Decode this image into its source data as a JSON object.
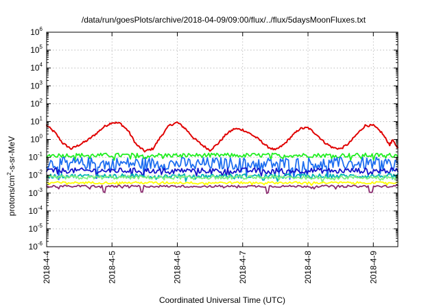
{
  "chart_data": {
    "type": "line",
    "title": "/data/run/goesPlots/archive/2018-04-09/09:00/flux/../flux/5daysMoonFluxes.txt",
    "xlabel": "Coordinated Universal Time (UTC)",
    "ylabel": {
      "base": "protons/cm",
      "sup": "2",
      "rest": "-s-sr-MeV"
    },
    "yscale": "log",
    "ylim": [
      1e-06,
      1000000.0
    ],
    "yticks": [
      {
        "value": 1000000.0,
        "base": "10",
        "exp": "6"
      },
      {
        "value": 100000.0,
        "base": "10",
        "exp": "5"
      },
      {
        "value": 10000.0,
        "base": "10",
        "exp": "4"
      },
      {
        "value": 1000.0,
        "base": "10",
        "exp": "3"
      },
      {
        "value": 100.0,
        "base": "10",
        "exp": "2"
      },
      {
        "value": 10.0,
        "base": "10",
        "exp": "1"
      },
      {
        "value": 1.0,
        "base": "10",
        "exp": "0"
      },
      {
        "value": 0.1,
        "base": "10",
        "exp": "-1"
      },
      {
        "value": 0.01,
        "base": "10",
        "exp": "-2"
      },
      {
        "value": 0.001,
        "base": "10",
        "exp": "-3"
      },
      {
        "value": 0.0001,
        "base": "10",
        "exp": "-4"
      },
      {
        "value": 1e-05,
        "base": "10",
        "exp": "-5"
      },
      {
        "value": 1e-06,
        "base": "10",
        "exp": "-6"
      }
    ],
    "xlim": [
      "2018-04-04T00:00",
      "2018-04-09T09:00"
    ],
    "xticks": [
      {
        "value": "2018-04-04T00:00",
        "label": "2018-4-4"
      },
      {
        "value": "2018-04-05T00:00",
        "label": "2018-4-5"
      },
      {
        "value": "2018-04-06T00:00",
        "label": "2018-4-6"
      },
      {
        "value": "2018-04-07T00:00",
        "label": "2018-4-7"
      },
      {
        "value": "2018-04-08T00:00",
        "label": "2018-4-8"
      },
      {
        "value": "2018-04-09T00:00",
        "label": "2018-4-9"
      }
    ],
    "grid": true,
    "legend": "none",
    "series": [
      {
        "color": "#e00000",
        "points": [
          [
            "2018-04-04T00:00",
            6
          ],
          [
            "2018-04-04T03:00",
            2.5
          ],
          [
            "2018-04-04T06:00",
            0.6
          ],
          [
            "2018-04-04T09:00",
            0.3
          ],
          [
            "2018-04-04T12:00",
            0.5
          ],
          [
            "2018-04-04T15:00",
            0.9
          ],
          [
            "2018-04-04T18:00",
            2
          ],
          [
            "2018-04-04T21:00",
            5
          ],
          [
            "2018-04-05T00:00",
            9
          ],
          [
            "2018-04-05T03:00",
            8
          ],
          [
            "2018-04-05T06:00",
            3
          ],
          [
            "2018-04-05T09:00",
            0.5
          ],
          [
            "2018-04-05T12:00",
            0.22
          ],
          [
            "2018-04-05T15:00",
            0.3
          ],
          [
            "2018-04-05T18:00",
            1.5
          ],
          [
            "2018-04-05T21:00",
            6
          ],
          [
            "2018-04-06T00:00",
            9
          ],
          [
            "2018-04-06T03:00",
            4
          ],
          [
            "2018-04-06T06:00",
            1.2
          ],
          [
            "2018-04-06T09:00",
            0.5
          ],
          [
            "2018-04-06T12:00",
            0.25
          ],
          [
            "2018-04-06T15:00",
            0.6
          ],
          [
            "2018-04-06T18:00",
            2
          ],
          [
            "2018-04-06T21:00",
            4
          ],
          [
            "2018-04-07T00:00",
            3.5
          ],
          [
            "2018-04-07T03:00",
            2
          ],
          [
            "2018-04-07T06:00",
            1
          ],
          [
            "2018-04-07T09:00",
            0.4
          ],
          [
            "2018-04-07T12:00",
            0.25
          ],
          [
            "2018-04-07T15:00",
            0.5
          ],
          [
            "2018-04-07T18:00",
            1.5
          ],
          [
            "2018-04-07T21:00",
            4
          ],
          [
            "2018-04-08T00:00",
            4.5
          ],
          [
            "2018-04-08T03:00",
            2
          ],
          [
            "2018-04-08T06:00",
            0.7
          ],
          [
            "2018-04-08T09:00",
            0.35
          ],
          [
            "2018-04-08T12:00",
            0.3
          ],
          [
            "2018-04-08T15:00",
            0.6
          ],
          [
            "2018-04-08T18:00",
            2
          ],
          [
            "2018-04-08T21:00",
            6
          ],
          [
            "2018-04-09T00:00",
            6
          ],
          [
            "2018-04-09T03:00",
            2.5
          ],
          [
            "2018-04-09T06:00",
            0.5
          ],
          [
            "2018-04-09T07:00",
            0.9
          ],
          [
            "2018-04-09T09:00",
            0.35
          ]
        ]
      },
      {
        "color": "#20ee20",
        "level": 0.13,
        "spread": 0.12,
        "spikes": []
      },
      {
        "color": "#1e6ef0",
        "level": 0.045,
        "spread": 0.35,
        "spikes": []
      },
      {
        "color": "#1414c8",
        "level": 0.018,
        "spread": 0.15,
        "spikes": []
      },
      {
        "color": "#00b4b4",
        "level": 0.009,
        "spread": 0.12,
        "spikes": []
      },
      {
        "color": "#80f080",
        "level": 0.0075,
        "spread": 0.1,
        "spikes": []
      },
      {
        "color": "#ffff00",
        "level": 0.0038,
        "spread": 0.06,
        "spikes": []
      },
      {
        "color": "#8a2a6e",
        "level": 0.0024,
        "spread": 0.06,
        "spikes": [
          "2018-04-04T21:00",
          "2018-04-05T11:00",
          "2018-04-07T09:00",
          "2018-04-08T23:00"
        ]
      }
    ]
  }
}
